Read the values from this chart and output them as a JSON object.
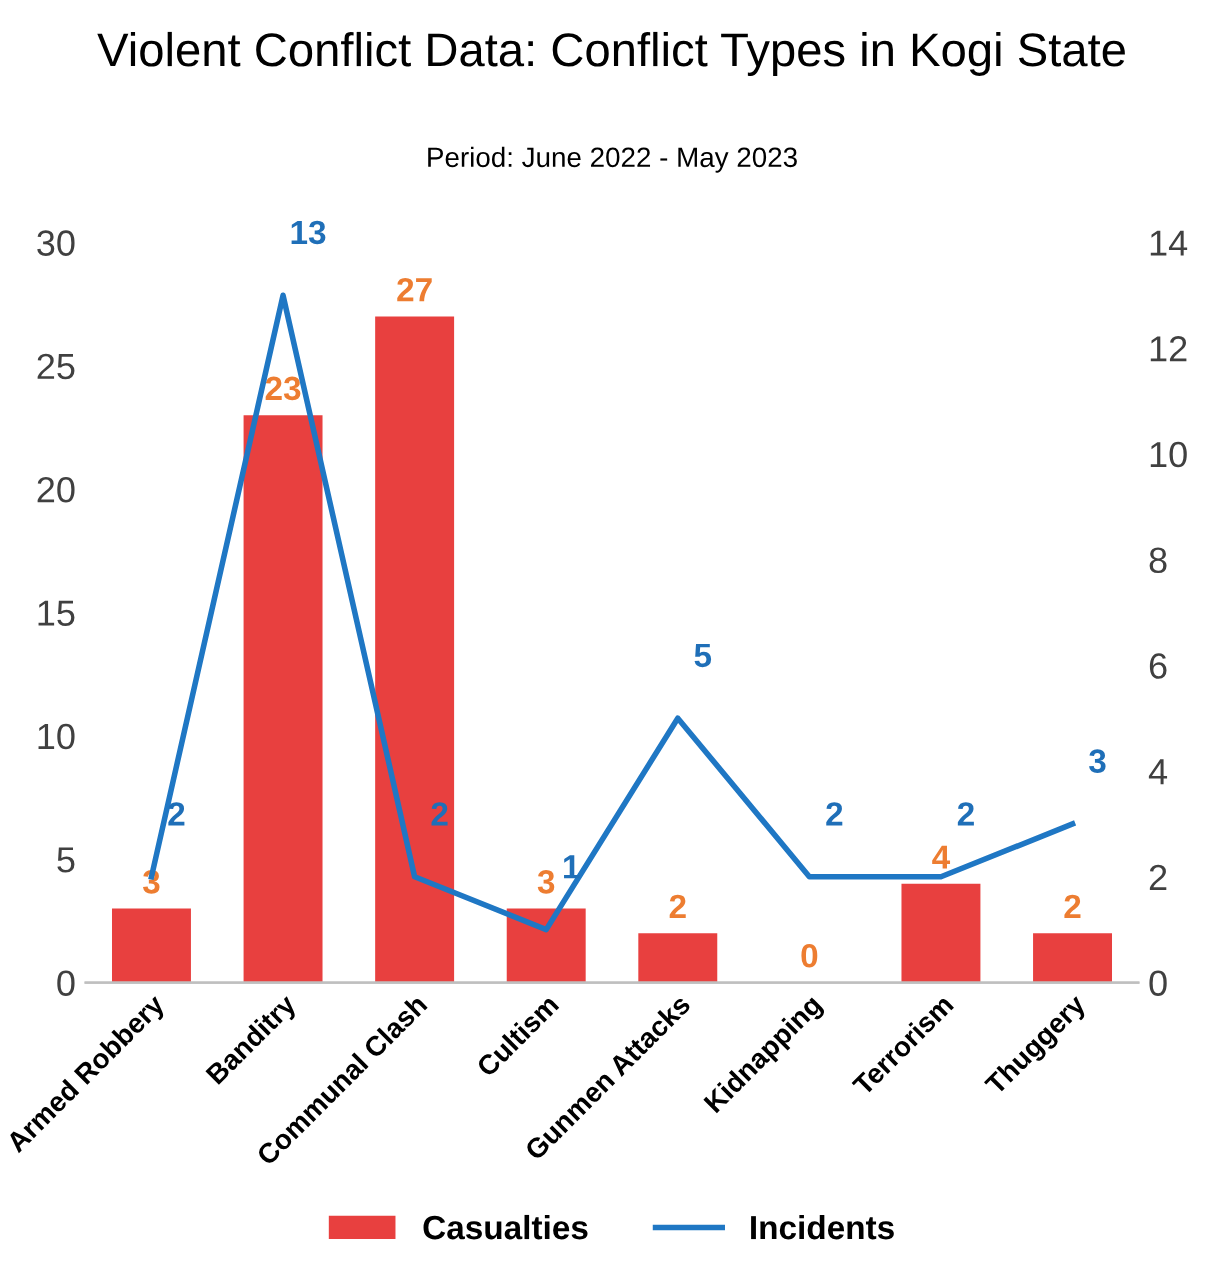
{
  "chart_data": {
    "type": "bar",
    "title": "Violent Conflict Data: Conflict Types in Kogi State",
    "subtitle": "Period: June 2022 - May 2023",
    "categories": [
      "Armed Robbery",
      "Banditry",
      "Communal Clash",
      "Cultism",
      "Gunmen Attacks",
      "Kidnapping",
      "Terrorism",
      "Thuggery"
    ],
    "series": [
      {
        "name": "Casualties",
        "color": "#e8403f",
        "values": [
          3,
          23,
          27,
          3,
          2,
          0,
          4,
          2
        ]
      },
      {
        "name": "Incidents",
        "type": "line",
        "axis": "y2",
        "color": "#1f77c4",
        "values": [
          2,
          13,
          2,
          1,
          5,
          2,
          2,
          3
        ]
      }
    ],
    "ylim": [
      0,
      30
    ],
    "yticks": [
      0,
      5,
      10,
      15,
      20,
      25,
      30
    ],
    "y2lim": [
      0,
      14
    ],
    "y2ticks": [
      0,
      2,
      4,
      6,
      8,
      10,
      12,
      14
    ],
    "data_labels": true,
    "legend": "bottom",
    "grid": false
  }
}
